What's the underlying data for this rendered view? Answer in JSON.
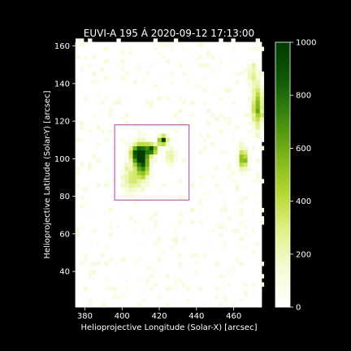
{
  "chart_data": {
    "type": "heatmap",
    "title": "EUVI-A 195 Á 2020-09-12 17:13:00",
    "xlabel": "Helioprojective Longitude (Solar-X) [arcsec]",
    "ylabel": "Helioprojective Latitude (Solar-Y) [arcsec]",
    "xlim": [
      375,
      475
    ],
    "ylim": [
      21,
      162
    ],
    "x_ticks": [
      380,
      400,
      420,
      440,
      460
    ],
    "y_ticks": [
      40,
      60,
      80,
      100,
      120,
      140,
      160
    ],
    "colorbar": {
      "range": [
        0,
        1000
      ],
      "ticks": [
        0,
        200,
        400,
        600,
        800,
        1000
      ],
      "colormap": [
        "#ffffff",
        "#f6fbd9",
        "#e2f08c",
        "#b6d832",
        "#7cb31a",
        "#3e8a0f",
        "#0f5a06",
        "#003a00"
      ]
    },
    "box": {
      "x_range": [
        396,
        436
      ],
      "y_range": [
        78,
        118
      ],
      "color": "#b43cb4"
    },
    "features": [
      {
        "x": 411,
        "y": 99,
        "sx": 2.5,
        "sy": 6,
        "value": 900
      },
      {
        "x": 408,
        "y": 103,
        "sx": 2.5,
        "sy": 3,
        "value": 780
      },
      {
        "x": 416,
        "y": 105,
        "sx": 2,
        "sy": 2,
        "value": 850
      },
      {
        "x": 422,
        "y": 110,
        "sx": 1.6,
        "sy": 1.6,
        "value": 980
      },
      {
        "x": 405,
        "y": 89,
        "sx": 3,
        "sy": 5,
        "value": 320
      },
      {
        "x": 426,
        "y": 101,
        "sx": 2,
        "sy": 3,
        "value": 260
      },
      {
        "x": 465,
        "y": 100,
        "sx": 1.6,
        "sy": 4,
        "value": 620
      },
      {
        "x": 473,
        "y": 128,
        "sx": 2,
        "sy": 8,
        "value": 560
      },
      {
        "x": 470,
        "y": 145,
        "sx": 2,
        "sy": 4,
        "value": 240
      }
    ]
  }
}
